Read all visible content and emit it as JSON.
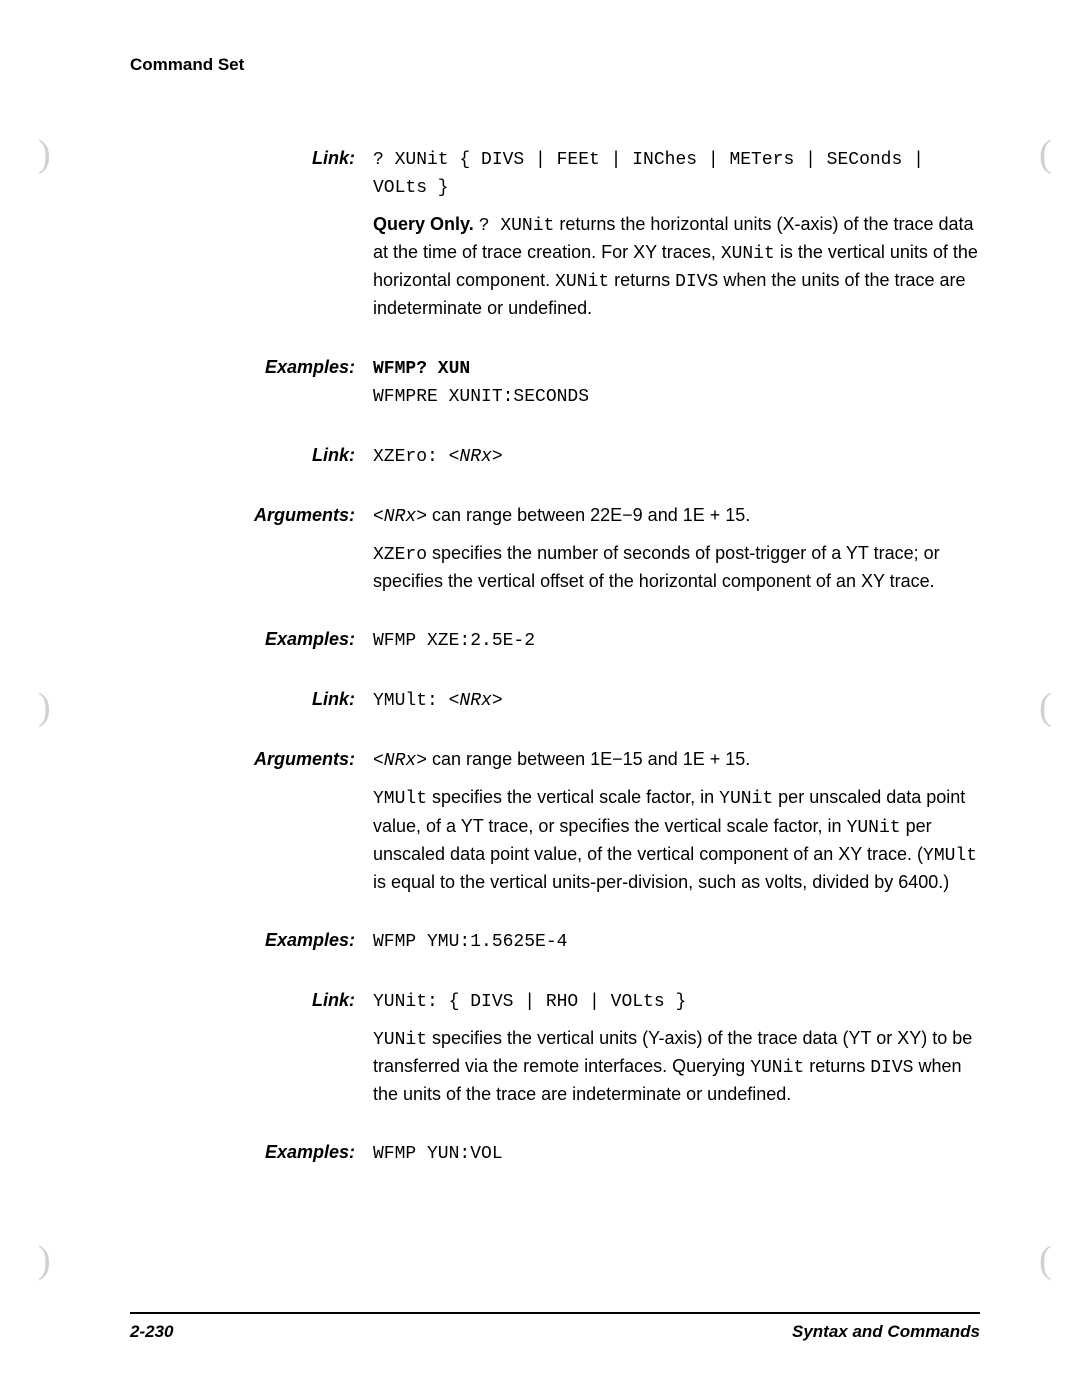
{
  "header": "Command Set",
  "sections": [
    {
      "label": "Link:",
      "syntax_parts": [
        {
          "t": "mono",
          "v": "? XUNit { DIVS | FEEt | INChes | METers | SEConds | VOLts }"
        }
      ],
      "desc_parts": [
        {
          "t": "bold",
          "v": "Query Only."
        },
        {
          "t": "text",
          "v": " "
        },
        {
          "t": "mono",
          "v": "? XUNit"
        },
        {
          "t": "text",
          "v": " returns the horizontal units (X-axis) of the trace data at the time of trace creation. For XY traces, "
        },
        {
          "t": "mono",
          "v": "XUNit"
        },
        {
          "t": "text",
          "v": " is the vertical units of the horizontal component. "
        },
        {
          "t": "mono",
          "v": "XUNit"
        },
        {
          "t": "text",
          "v": " returns "
        },
        {
          "t": "mono",
          "v": "DIVS"
        },
        {
          "t": "text",
          "v": " when the units of the trace are indeterminate or undefined."
        }
      ]
    },
    {
      "label": "Examples:",
      "syntax_parts": [
        {
          "t": "monob",
          "v": "WFMP? XUN"
        },
        {
          "t": "br"
        },
        {
          "t": "mono",
          "v": "WFMPRE XUNIT:SECONDS"
        }
      ]
    },
    {
      "label": "Link:",
      "syntax_parts": [
        {
          "t": "mono",
          "v": "XZEro: "
        },
        {
          "t": "mono-italic",
          "v": "<NRx>"
        }
      ]
    },
    {
      "label": "Arguments:",
      "syntax_parts": [
        {
          "t": "mono-italic",
          "v": "<NRx>"
        },
        {
          "t": "text",
          "v": " can range between 22E−9 and 1E + 15."
        }
      ],
      "desc_parts": [
        {
          "t": "mono",
          "v": "XZEro"
        },
        {
          "t": "text",
          "v": " specifies the number of seconds of post-trigger of a YT trace; or specifies the vertical offset of the horizontal component of an XY trace."
        }
      ]
    },
    {
      "label": "Examples:",
      "syntax_parts": [
        {
          "t": "mono",
          "v": "WFMP XZE:2.5E-2"
        }
      ]
    },
    {
      "label": "Link:",
      "syntax_parts": [
        {
          "t": "mono",
          "v": "YMUlt: "
        },
        {
          "t": "mono-italic",
          "v": "<NRx>"
        }
      ]
    },
    {
      "label": "Arguments:",
      "syntax_parts": [
        {
          "t": "mono-italic",
          "v": "<NRx>"
        },
        {
          "t": "text",
          "v": " can range between 1E−15 and 1E + 15."
        }
      ],
      "desc_parts": [
        {
          "t": "mono",
          "v": "YMUlt"
        },
        {
          "t": "text",
          "v": " specifies the vertical scale factor, in "
        },
        {
          "t": "mono",
          "v": "YUNit"
        },
        {
          "t": "text",
          "v": " per unscaled data point value, of a YT trace, or specifies the vertical scale factor, in "
        },
        {
          "t": "mono",
          "v": "YUNit"
        },
        {
          "t": "text",
          "v": " per unscaled data point value, of the vertical component of an XY trace. ("
        },
        {
          "t": "mono",
          "v": "YMUlt"
        },
        {
          "t": "text",
          "v": " is equal to the vertical units-per-division, such as volts, divided by 6400.)"
        }
      ]
    },
    {
      "label": "Examples:",
      "syntax_parts": [
        {
          "t": "mono",
          "v": "WFMP YMU:1.5625E-4"
        }
      ]
    },
    {
      "label": "Link:",
      "syntax_parts": [
        {
          "t": "mono",
          "v": "YUNit: { DIVS | RHO | VOLts }"
        }
      ],
      "desc_parts": [
        {
          "t": "mono",
          "v": "YUNit"
        },
        {
          "t": "text",
          "v": " specifies the vertical units (Y-axis) of the trace data (YT or XY) to be transferred via the remote interfaces. Querying "
        },
        {
          "t": "mono",
          "v": "YUNit"
        },
        {
          "t": "text",
          "v": " returns "
        },
        {
          "t": "mono",
          "v": "DIVS"
        },
        {
          "t": "text",
          "v": " when the units of the trace are indeterminate or undefined."
        }
      ]
    },
    {
      "label": "Examples:",
      "syntax_parts": [
        {
          "t": "mono",
          "v": "WFMP YUN:VOL"
        }
      ]
    }
  ],
  "footer_left": "2-230",
  "footer_right": "Syntax and Commands"
}
